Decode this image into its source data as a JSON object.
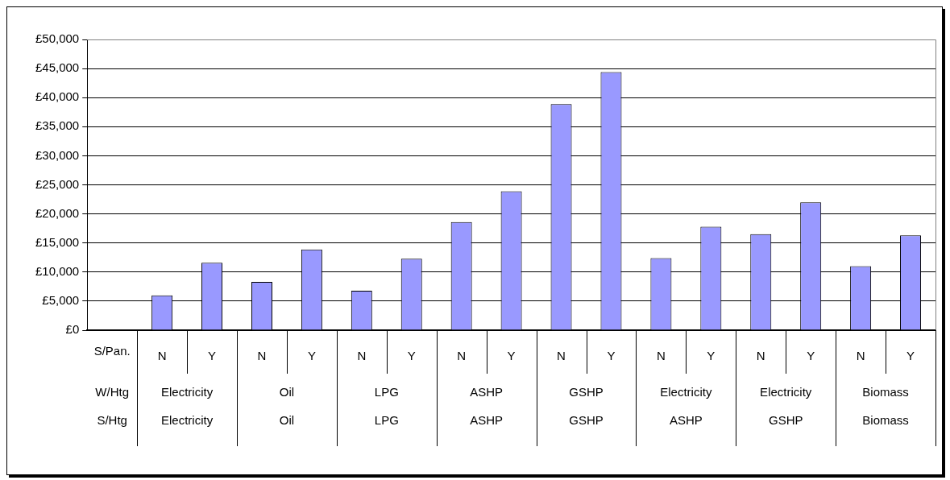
{
  "chart_data": {
    "type": "bar",
    "categories": [
      null,
      "N",
      "Y",
      "N",
      "Y",
      "N",
      "Y",
      "N",
      "Y",
      "N",
      "Y",
      "N",
      "Y",
      "N",
      "Y",
      "N",
      "Y"
    ],
    "values": [
      null,
      6000,
      11600,
      8300,
      13900,
      6800,
      12300,
      18600,
      23900,
      38900,
      44400,
      12400,
      17800,
      16500,
      22000,
      11000,
      16300
    ],
    "color": "#9999ff",
    "ylim": [
      0,
      50000
    ],
    "yticks": [
      {
        "value": 0,
        "label": "£0"
      },
      {
        "value": 5000,
        "label": "£5,000"
      },
      {
        "value": 10000,
        "label": "£10,000"
      },
      {
        "value": 15000,
        "label": "£15,000"
      },
      {
        "value": 20000,
        "label": "£20,000"
      },
      {
        "value": 25000,
        "label": "£25,000"
      },
      {
        "value": 30000,
        "label": "£30,000"
      },
      {
        "value": 35000,
        "label": "£35,000"
      },
      {
        "value": 40000,
        "label": "£40,000"
      },
      {
        "value": 45000,
        "label": "£45,000"
      },
      {
        "value": 50000,
        "label": "£50,000"
      }
    ],
    "grid": "y",
    "legend": false,
    "annotations": [
      "S/Pan.",
      "W/Htg",
      "Electricity",
      "Oil",
      "LPG",
      "ASHP",
      "GSHP",
      "Electricity",
      "Electricity",
      "Biomass",
      "S/Htg",
      "Electricity",
      "Oil",
      "LPG",
      "ASHP",
      "GSHP",
      "ASHP",
      "GSHP",
      "Biomass"
    ]
  }
}
